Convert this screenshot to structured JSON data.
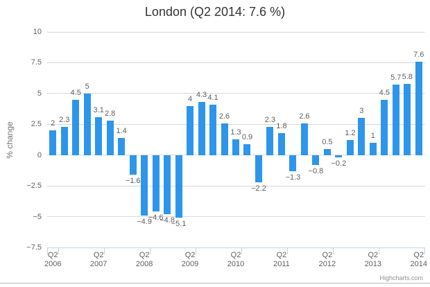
{
  "credits_label": "Highcharts.com",
  "chart_data": {
    "type": "bar",
    "title": "London (Q2 2014: 7.6 %)",
    "subtitle": "",
    "xlabel": "",
    "ylabel": "% change",
    "ylim": [
      -7.5,
      10
    ],
    "grid": true,
    "legend": "none",
    "yticks": [
      {
        "label": "10",
        "value": 10
      },
      {
        "label": "7.5",
        "value": 7.5
      },
      {
        "label": "5",
        "value": 5
      },
      {
        "label": "2.5",
        "value": 2.5
      },
      {
        "label": "0",
        "value": 0
      },
      {
        "label": "−2.5",
        "value": -2.5
      },
      {
        "label": "−5",
        "value": -5
      },
      {
        "label": "−7.5",
        "value": -7.5
      }
    ],
    "x_tick_labels": [
      {
        "quarter": "Q2",
        "year": "2006"
      },
      {
        "quarter": "Q2",
        "year": "2007"
      },
      {
        "quarter": "Q2",
        "year": "2008"
      },
      {
        "quarter": "Q2",
        "year": "2009"
      },
      {
        "quarter": "Q2",
        "year": "2010"
      },
      {
        "quarter": "Q2",
        "year": "2011"
      },
      {
        "quarter": "Q2",
        "year": "2012"
      },
      {
        "quarter": "Q2",
        "year": "2013"
      },
      {
        "quarter": "Q2",
        "year": "2014"
      }
    ],
    "x_label_interval": 4,
    "points": [
      {
        "label": "2",
        "value": 2
      },
      {
        "label": "2.3",
        "value": 2.3
      },
      {
        "label": "4.5",
        "value": 4.5
      },
      {
        "label": "5",
        "value": 5
      },
      {
        "label": "3.1",
        "value": 3.1
      },
      {
        "label": "2.8",
        "value": 2.8
      },
      {
        "label": "1.4",
        "value": 1.4
      },
      {
        "label": "−1.6",
        "value": -1.6
      },
      {
        "label": "−4.9",
        "value": -4.9
      },
      {
        "label": "−4.6",
        "value": -4.6
      },
      {
        "label": "−4.8",
        "value": -4.8
      },
      {
        "label": "−5.1",
        "value": -5.1
      },
      {
        "label": "4",
        "value": 4
      },
      {
        "label": "4.3",
        "value": 4.3
      },
      {
        "label": "4.1",
        "value": 4.1
      },
      {
        "label": "2.6",
        "value": 2.6
      },
      {
        "label": "1.3",
        "value": 1.3
      },
      {
        "label": "0.9",
        "value": 0.9
      },
      {
        "label": "−2.2",
        "value": -2.2
      },
      {
        "label": "2.3",
        "value": 2.3
      },
      {
        "label": "1.8",
        "value": 1.8
      },
      {
        "label": "−1.3",
        "value": -1.3
      },
      {
        "label": "2.6",
        "value": 2.6
      },
      {
        "label": "−0.8",
        "value": -0.8
      },
      {
        "label": "0.5",
        "value": 0.5
      },
      {
        "label": "−0.2",
        "value": -0.2
      },
      {
        "label": "1.2",
        "value": 1.2
      },
      {
        "label": "3",
        "value": 3
      },
      {
        "label": "1",
        "value": 1
      },
      {
        "label": "4.5",
        "value": 4.5
      },
      {
        "label": "5.7",
        "value": 5.7
      },
      {
        "label": "5.8",
        "value": 5.8
      },
      {
        "label": "7.6",
        "value": 7.6
      }
    ],
    "colors": {
      "bar": "#2d96ea",
      "grid": "#d8d8d8",
      "axis_line": "#c0d0e0",
      "axis_label": "#606060",
      "data_label": "#606060",
      "title": "#333333",
      "y_title": "#707070",
      "credits": "#909090"
    }
  }
}
